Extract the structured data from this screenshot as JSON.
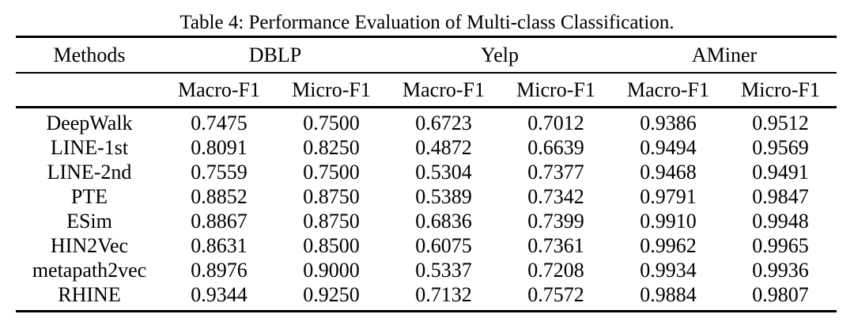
{
  "caption": "Table 4: Performance Evaluation of Multi-class Classification.",
  "colors": {
    "text": "#000000",
    "background": "#ffffff",
    "rule": "#000000"
  },
  "table": {
    "methods_header": "Methods",
    "group_headers": [
      "DBLP",
      "Yelp",
      "AMiner"
    ],
    "metric_headers": [
      "Macro-F1",
      "Micro-F1",
      "Macro-F1",
      "Micro-F1",
      "Macro-F1",
      "Micro-F1"
    ],
    "rows": [
      {
        "method": "DeepWalk",
        "values": [
          "0.7475",
          "0.7500",
          "0.6723",
          "0.7012",
          "0.9386",
          "0.9512"
        ],
        "bold": [
          false,
          false,
          false,
          false,
          false,
          false
        ]
      },
      {
        "method": "LINE-1st",
        "values": [
          "0.8091",
          "0.8250",
          "0.4872",
          "0.6639",
          "0.9494",
          "0.9569"
        ],
        "bold": [
          false,
          false,
          false,
          false,
          false,
          false
        ]
      },
      {
        "method": "LINE-2nd",
        "values": [
          "0.7559",
          "0.7500",
          "0.5304",
          "0.7377",
          "0.9468",
          "0.9491"
        ],
        "bold": [
          false,
          false,
          false,
          false,
          false,
          false
        ]
      },
      {
        "method": "PTE",
        "values": [
          "0.8852",
          "0.8750",
          "0.5389",
          "0.7342",
          "0.9791",
          "0.9847"
        ],
        "bold": [
          false,
          false,
          false,
          false,
          false,
          false
        ]
      },
      {
        "method": "ESim",
        "values": [
          "0.8867",
          "0.8750",
          "0.6836",
          "0.7399",
          "0.9910",
          "0.9948"
        ],
        "bold": [
          false,
          false,
          false,
          false,
          false,
          false
        ]
      },
      {
        "method": "HIN2Vec",
        "values": [
          "0.8631",
          "0.8500",
          "0.6075",
          "0.7361",
          "0.9962",
          "0.9965"
        ],
        "bold": [
          false,
          false,
          false,
          false,
          true,
          true
        ]
      },
      {
        "method": "metapath2vec",
        "values": [
          "0.8976",
          "0.9000",
          "0.5337",
          "0.7208",
          "0.9934",
          "0.9936"
        ],
        "bold": [
          false,
          false,
          false,
          false,
          false,
          false
        ]
      },
      {
        "method": "RHINE",
        "values": [
          "0.9344",
          "0.9250",
          "0.7132",
          "0.7572",
          "0.9884",
          "0.9807"
        ],
        "bold": [
          true,
          true,
          true,
          true,
          false,
          false
        ]
      }
    ]
  }
}
